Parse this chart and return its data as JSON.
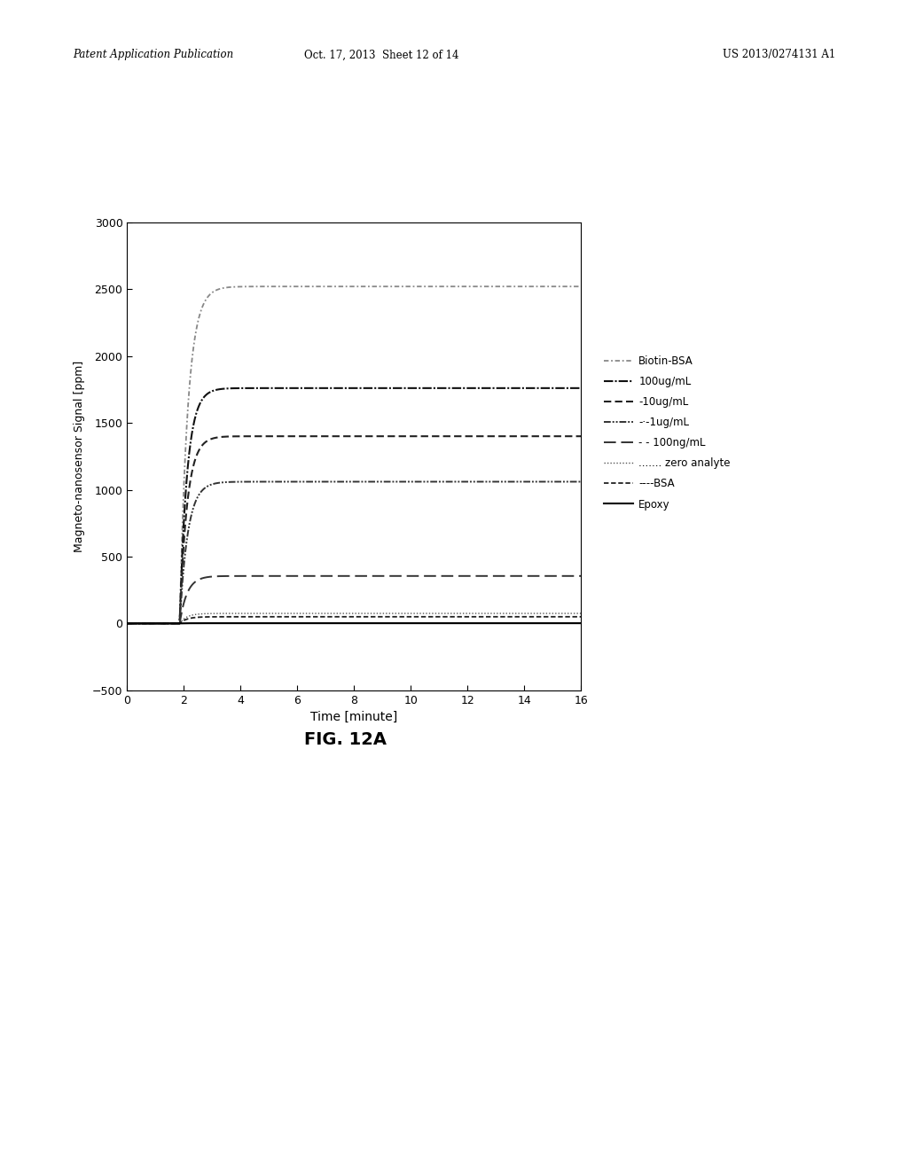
{
  "title": "FIG. 12A",
  "xlabel": "Time [minute]",
  "ylabel": "Magneto-nanosensor Signal [ppm]",
  "xlim": [
    0,
    16
  ],
  "ylim": [
    -500,
    3000
  ],
  "xticks": [
    0,
    2,
    4,
    6,
    8,
    10,
    12,
    14,
    16
  ],
  "yticks": [
    -500,
    0,
    500,
    1000,
    1500,
    2000,
    2500,
    3000
  ],
  "plateaus": [
    2520,
    1760,
    1400,
    1060,
    355,
    75,
    50,
    2
  ],
  "rise_rates": [
    3.5,
    3.8,
    3.8,
    3.5,
    3.8,
    4.0,
    4.0,
    5.0
  ],
  "rise_start": 1.85,
  "legend_labels": [
    "Biotin-BSA",
    "100ug/mL",
    "-10ug/mL",
    "-·-1ug/mL",
    "- - 100ng/mL",
    "....... zero analyte",
    "----BSA",
    "Epoxy"
  ],
  "header_left": "Patent Application Publication",
  "header_mid": "Oct. 17, 2013  Sheet 12 of 14",
  "header_right": "US 2013/0274131 A1",
  "fig_label": "FIG. 12A",
  "background_color": "#ffffff"
}
